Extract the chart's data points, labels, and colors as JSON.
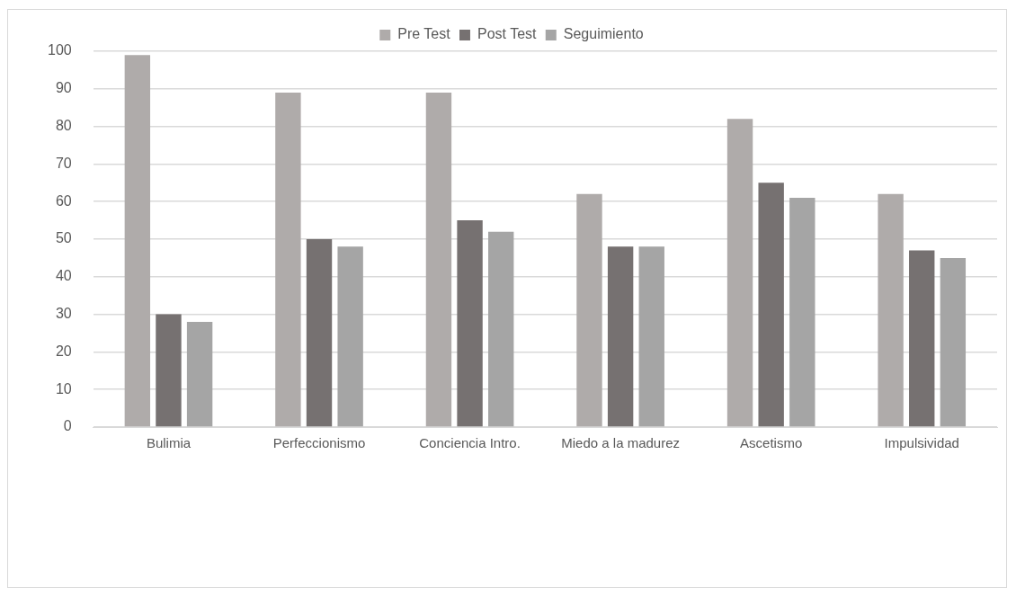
{
  "chart_data": {
    "type": "bar",
    "categories": [
      "Bulimia",
      "Perfeccionismo",
      "Conciencia Intro.",
      "Miedo a la madurez",
      "Ascetismo",
      "Impulsividad"
    ],
    "series": [
      {
        "name": "Pre Test",
        "color": "#afabaa",
        "values": [
          99,
          89,
          89,
          62,
          82,
          62
        ]
      },
      {
        "name": "Post Test",
        "color": "#767171",
        "values": [
          30,
          50,
          55,
          48,
          65,
          47
        ]
      },
      {
        "name": "Seguimiento",
        "color": "#a5a5a5",
        "values": [
          28,
          48,
          52,
          48,
          61,
          45
        ]
      }
    ],
    "ylim": [
      0,
      100
    ],
    "yticks": [
      0,
      10,
      20,
      30,
      40,
      50,
      60,
      70,
      80,
      90,
      100
    ],
    "grid": "y",
    "legend": "top"
  }
}
